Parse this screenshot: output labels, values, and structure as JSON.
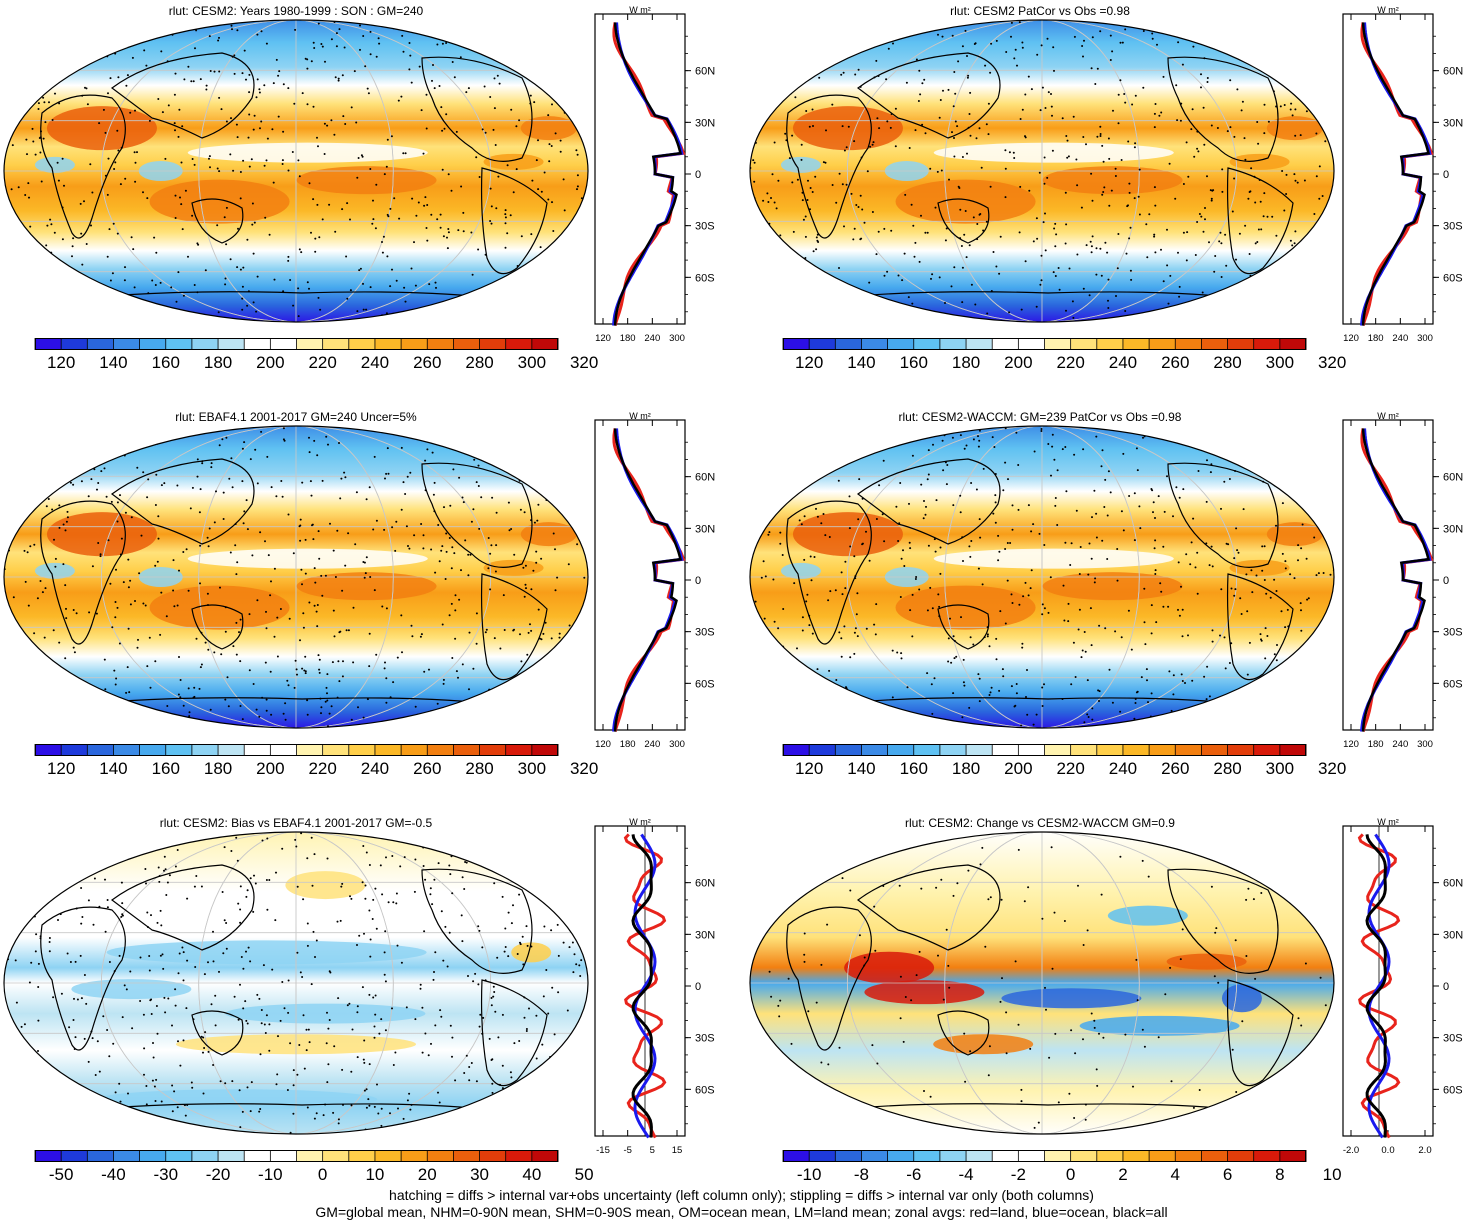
{
  "colors": {
    "land": "#e8241c",
    "ocean": "#1a1aee",
    "all": "#000000",
    "abs_scale": [
      "#2c0fe6",
      "#1e3adb",
      "#2a66dd",
      "#3b8ae6",
      "#47a9ee",
      "#5fc1f2",
      "#8ed3f3",
      "#bde4f3",
      "#ffffff",
      "#ffffff",
      "#fff3b0",
      "#ffe27a",
      "#ffcf4a",
      "#fbb827",
      "#f89d18",
      "#f27f10",
      "#ea5f0c",
      "#e23d0a",
      "#d81a0a",
      "#c00808"
    ],
    "diff_scale": [
      "#2c0fe6",
      "#1e3adb",
      "#2a66dd",
      "#3b8ae6",
      "#47a9ee",
      "#5fc1f2",
      "#8ed3f3",
      "#bde4f3",
      "#ffffff",
      "#ffffff",
      "#fff3b0",
      "#ffe27a",
      "#ffcf4a",
      "#fbb827",
      "#f89d18",
      "#f27f10",
      "#ea5f0c",
      "#e23d0a",
      "#d81a0a",
      "#c00808"
    ]
  },
  "panels": [
    {
      "title": "rlut: CESM2: Years 1980-1999 : SON : GM=240",
      "type": "abs",
      "colorbar_labels": [
        "120",
        "140",
        "160",
        "180",
        "200",
        "220",
        "240",
        "260",
        "280",
        "300",
        "320"
      ],
      "zonal_ticks": [
        "120",
        "180",
        "240",
        "300"
      ],
      "lat_labels": [
        "60N",
        "30N",
        "0",
        "30S",
        "60S"
      ],
      "units": "W m²"
    },
    {
      "title": "rlut: CESM2 PatCor vs Obs =0.98",
      "type": "abs",
      "colorbar_labels": [
        "120",
        "140",
        "160",
        "180",
        "200",
        "220",
        "240",
        "260",
        "280",
        "300",
        "320"
      ],
      "zonal_ticks": [
        "120",
        "180",
        "240",
        "300"
      ],
      "lat_labels": [
        "60N",
        "30N",
        "0",
        "30S",
        "60S"
      ],
      "units": "W m²"
    },
    {
      "title": "rlut: EBAF4.1 2001-2017 GM=240 Uncer=5%",
      "type": "abs",
      "colorbar_labels": [
        "120",
        "140",
        "160",
        "180",
        "200",
        "220",
        "240",
        "260",
        "280",
        "300",
        "320"
      ],
      "zonal_ticks": [
        "120",
        "180",
        "240",
        "300"
      ],
      "lat_labels": [
        "60N",
        "30N",
        "0",
        "30S",
        "60S"
      ],
      "units": "W m²"
    },
    {
      "title": "rlut: CESM2-WACCM: GM=239 PatCor vs Obs =0.98",
      "type": "abs",
      "colorbar_labels": [
        "120",
        "140",
        "160",
        "180",
        "200",
        "220",
        "240",
        "260",
        "280",
        "300",
        "320"
      ],
      "zonal_ticks": [
        "120",
        "180",
        "240",
        "300"
      ],
      "lat_labels": [
        "60N",
        "30N",
        "0",
        "30S",
        "60S"
      ],
      "units": "W m²"
    },
    {
      "title": "rlut: CESM2: Bias vs EBAF4.1 2001-2017  GM=-0.5",
      "type": "bias",
      "colorbar_labels": [
        "-50",
        "-40",
        "-30",
        "-20",
        "-10",
        "0",
        "10",
        "20",
        "30",
        "40",
        "50"
      ],
      "zonal_ticks": [
        "-15",
        "-5",
        "5",
        "15"
      ],
      "lat_labels": [
        "60N",
        "30N",
        "0",
        "30S",
        "60S"
      ],
      "units": "W m²"
    },
    {
      "title": "rlut: CESM2: Change vs CESM2-WACCM GM=0.9",
      "type": "change",
      "colorbar_labels": [
        "-10",
        "-8",
        "-6",
        "-4",
        "-2",
        "0",
        "2",
        "4",
        "6",
        "8",
        "10"
      ],
      "zonal_ticks": [
        "-2.0",
        "0.0",
        "2.0"
      ],
      "lat_labels": [
        "60N",
        "30N",
        "0",
        "30S",
        "60S"
      ],
      "units": "W m²"
    }
  ],
  "footer": {
    "line1": "hatching = diffs > internal var+obs uncertainty (left column only); stippling = diffs > internal var only (both columns)",
    "line2": "GM=global mean, NHM=0-90N mean, SHM=0-90S mean, OM=ocean mean, LM=land mean; zonal avgs: red=land, blue=ocean, black=all"
  }
}
